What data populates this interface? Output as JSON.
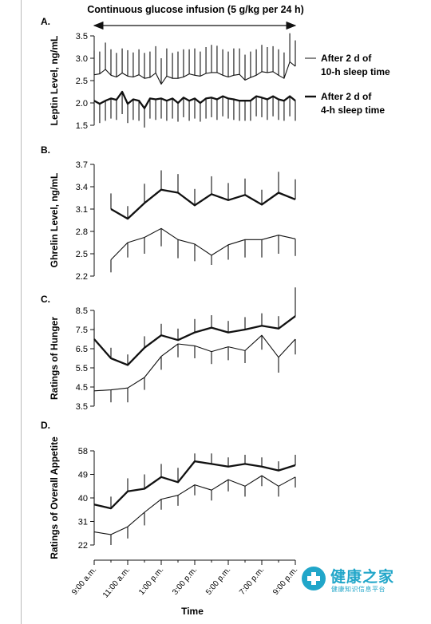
{
  "figure": {
    "infusion_label": "Continuous glucose infusion (5 g/kg per 24 h)",
    "x_axis_title": "Time",
    "x_ticks": [
      "9:00 a.m.",
      "11:00 a.m.",
      "1:00 p.m.",
      "3:00 p.m.",
      "5:00 p.m.",
      "7:00 p.m.",
      "9:00 p.m."
    ],
    "legend": {
      "ten_hour": [
        "After 2 d of",
        "10-h sleep time"
      ],
      "four_hour": [
        "After 2 d of",
        "4-h sleep time"
      ]
    }
  },
  "watermark": {
    "brand": "健康之家",
    "tagline": "健康知识信息平台"
  },
  "colors": {
    "ink": "#111111",
    "frame": "#b9b9b9",
    "watermark": "#21a6c9"
  },
  "chart_data": [
    {
      "type": "line",
      "panel": "A.",
      "ylabel": "Leptin Level, ng/mL",
      "ylim": [
        1.5,
        3.5
      ],
      "yticks": [
        "3.5",
        "3.0",
        "2.5",
        "2.0",
        "1.5"
      ],
      "x_hours": [
        9.0,
        9.33,
        9.67,
        10.0,
        10.33,
        10.67,
        11.0,
        11.33,
        11.67,
        12.0,
        12.33,
        12.67,
        13.0,
        13.33,
        13.67,
        14.0,
        14.33,
        14.67,
        15.0,
        15.33,
        15.67,
        16.0,
        16.33,
        16.67,
        17.0,
        17.33,
        17.67,
        18.0,
        18.33,
        18.67,
        19.0,
        19.33,
        19.67,
        20.0,
        20.33,
        20.67,
        21.0
      ],
      "series": [
        {
          "name": "After 2 d of 10-h sleep time",
          "style": "thin",
          "values": [
            2.63,
            2.65,
            2.75,
            2.62,
            2.58,
            2.67,
            2.6,
            2.58,
            2.63,
            2.55,
            2.57,
            2.67,
            2.42,
            2.6,
            2.55,
            2.55,
            2.58,
            2.65,
            2.62,
            2.6,
            2.66,
            2.68,
            2.68,
            2.62,
            2.58,
            2.62,
            2.64,
            2.51,
            2.57,
            2.62,
            2.7,
            2.68,
            2.7,
            2.62,
            2.55,
            2.92,
            2.82
          ],
          "upper": [
            3.17,
            3.15,
            3.35,
            3.2,
            3.12,
            3.22,
            3.18,
            3.13,
            3.2,
            3.12,
            3.15,
            3.27,
            3.0,
            3.22,
            3.12,
            3.15,
            3.2,
            3.2,
            3.22,
            3.15,
            3.25,
            3.3,
            3.28,
            3.2,
            3.15,
            3.22,
            3.22,
            3.08,
            3.15,
            3.2,
            3.3,
            3.25,
            3.27,
            3.2,
            3.13,
            3.56,
            3.4
          ]
        },
        {
          "name": "After 2 d of 4-h sleep time",
          "style": "thick",
          "values": [
            2.05,
            1.98,
            2.05,
            2.1,
            2.07,
            2.25,
            1.98,
            2.08,
            2.05,
            1.88,
            2.1,
            2.08,
            2.1,
            2.05,
            2.1,
            2.0,
            2.12,
            2.05,
            2.1,
            2.0,
            2.1,
            2.12,
            2.08,
            2.15,
            2.1,
            2.08,
            2.05,
            2.05,
            2.05,
            2.15,
            2.12,
            2.08,
            2.15,
            2.08,
            2.05,
            2.15,
            2.05
          ],
          "lower": [
            1.6,
            1.55,
            1.6,
            1.65,
            1.62,
            1.75,
            1.55,
            1.62,
            1.6,
            1.45,
            1.65,
            1.62,
            1.65,
            1.6,
            1.65,
            1.58,
            1.68,
            1.6,
            1.65,
            1.58,
            1.65,
            1.68,
            1.62,
            1.7,
            1.65,
            1.62,
            1.6,
            1.6,
            1.6,
            1.7,
            1.68,
            1.62,
            1.7,
            1.62,
            1.6,
            1.7,
            1.6
          ]
        }
      ]
    },
    {
      "type": "line",
      "panel": "B.",
      "ylabel": "Ghrelin Level, ng/mL",
      "ylim": [
        2.2,
        3.7
      ],
      "yticks": [
        "3.7",
        "3.4",
        "3.1",
        "2.8",
        "2.5",
        "2.2"
      ],
      "x_hours": [
        10.0,
        11.0,
        12.0,
        13.0,
        14.0,
        15.0,
        16.0,
        17.0,
        18.0,
        19.0,
        20.0,
        21.0
      ],
      "series": [
        {
          "name": "After 2 d of 4-h sleep time",
          "style": "thick",
          "values": [
            3.1,
            2.97,
            3.18,
            3.36,
            3.32,
            3.15,
            3.3,
            3.22,
            3.29,
            3.16,
            3.32,
            3.23
          ],
          "upper": [
            3.31,
            3.14,
            3.44,
            3.62,
            3.57,
            3.37,
            3.54,
            3.45,
            3.51,
            3.36,
            3.6,
            3.5
          ]
        },
        {
          "name": "After 2 d of 10-h sleep time",
          "style": "thin",
          "values": [
            2.42,
            2.65,
            2.72,
            2.84,
            2.69,
            2.63,
            2.48,
            2.62,
            2.69,
            2.69,
            2.75,
            2.7
          ],
          "lower": [
            2.25,
            2.45,
            2.5,
            2.6,
            2.44,
            2.4,
            2.35,
            2.42,
            2.45,
            2.45,
            2.5,
            2.47
          ]
        }
      ]
    },
    {
      "type": "line",
      "panel": "C.",
      "ylabel": "Ratings of Hunger",
      "ylim": [
        3.5,
        8.5
      ],
      "yticks": [
        "8.5",
        "7.5",
        "6.5",
        "5.5",
        "4.5",
        "3.5"
      ],
      "x_hours": [
        9.0,
        10.0,
        11.0,
        12.0,
        13.0,
        14.0,
        15.0,
        16.0,
        17.0,
        18.0,
        19.0,
        20.0,
        21.0
      ],
      "series": [
        {
          "name": "After 2 d of 4-h sleep time",
          "style": "thick",
          "values": [
            7.0,
            6.0,
            5.65,
            6.55,
            7.2,
            6.95,
            7.35,
            7.6,
            7.35,
            7.5,
            7.7,
            7.55,
            8.2
          ],
          "upper": [
            7.6,
            6.55,
            6.2,
            7.15,
            7.8,
            7.55,
            8.05,
            8.25,
            7.95,
            8.15,
            8.35,
            8.2,
            9.7
          ]
        },
        {
          "name": "After 2 d of 10-h sleep time",
          "style": "thin",
          "values": [
            4.3,
            4.35,
            4.45,
            5.0,
            6.1,
            6.75,
            6.65,
            6.35,
            6.6,
            6.4,
            7.2,
            6.05,
            7.0
          ],
          "lower": [
            3.6,
            3.7,
            3.7,
            4.35,
            5.4,
            6.05,
            6.0,
            5.7,
            5.9,
            5.75,
            6.45,
            5.25,
            6.2
          ]
        }
      ]
    },
    {
      "type": "line",
      "panel": "D.",
      "ylabel": "Ratings of Overall Appetite",
      "ylim": [
        22,
        58
      ],
      "yticks": [
        "58",
        "49",
        "40",
        "31",
        "22"
      ],
      "x_hours": [
        9.0,
        10.0,
        11.0,
        12.0,
        13.0,
        14.0,
        15.0,
        16.0,
        17.0,
        18.0,
        19.0,
        20.0,
        21.0
      ],
      "series": [
        {
          "name": "After 2 d of 4-h sleep time",
          "style": "thick",
          "values": [
            37.5,
            36.0,
            42.5,
            43.5,
            48.0,
            46.0,
            54.0,
            53.0,
            52.0,
            53.0,
            52.0,
            50.5,
            52.5
          ],
          "upper": [
            42.5,
            40.5,
            47.5,
            49.0,
            53.0,
            51.5,
            57.0,
            57.0,
            55.5,
            56.5,
            55.5,
            54.0,
            56.5
          ]
        },
        {
          "name": "After 2 d of 10-h sleep time",
          "style": "thin",
          "values": [
            27.0,
            26.0,
            29.0,
            34.5,
            39.5,
            41.0,
            45.0,
            43.0,
            47.0,
            44.5,
            48.5,
            44.5,
            48.0
          ],
          "lower": [
            23.0,
            22.0,
            24.5,
            29.5,
            35.5,
            37.0,
            41.0,
            39.0,
            42.5,
            40.5,
            44.5,
            40.5,
            44.0
          ]
        }
      ]
    }
  ]
}
